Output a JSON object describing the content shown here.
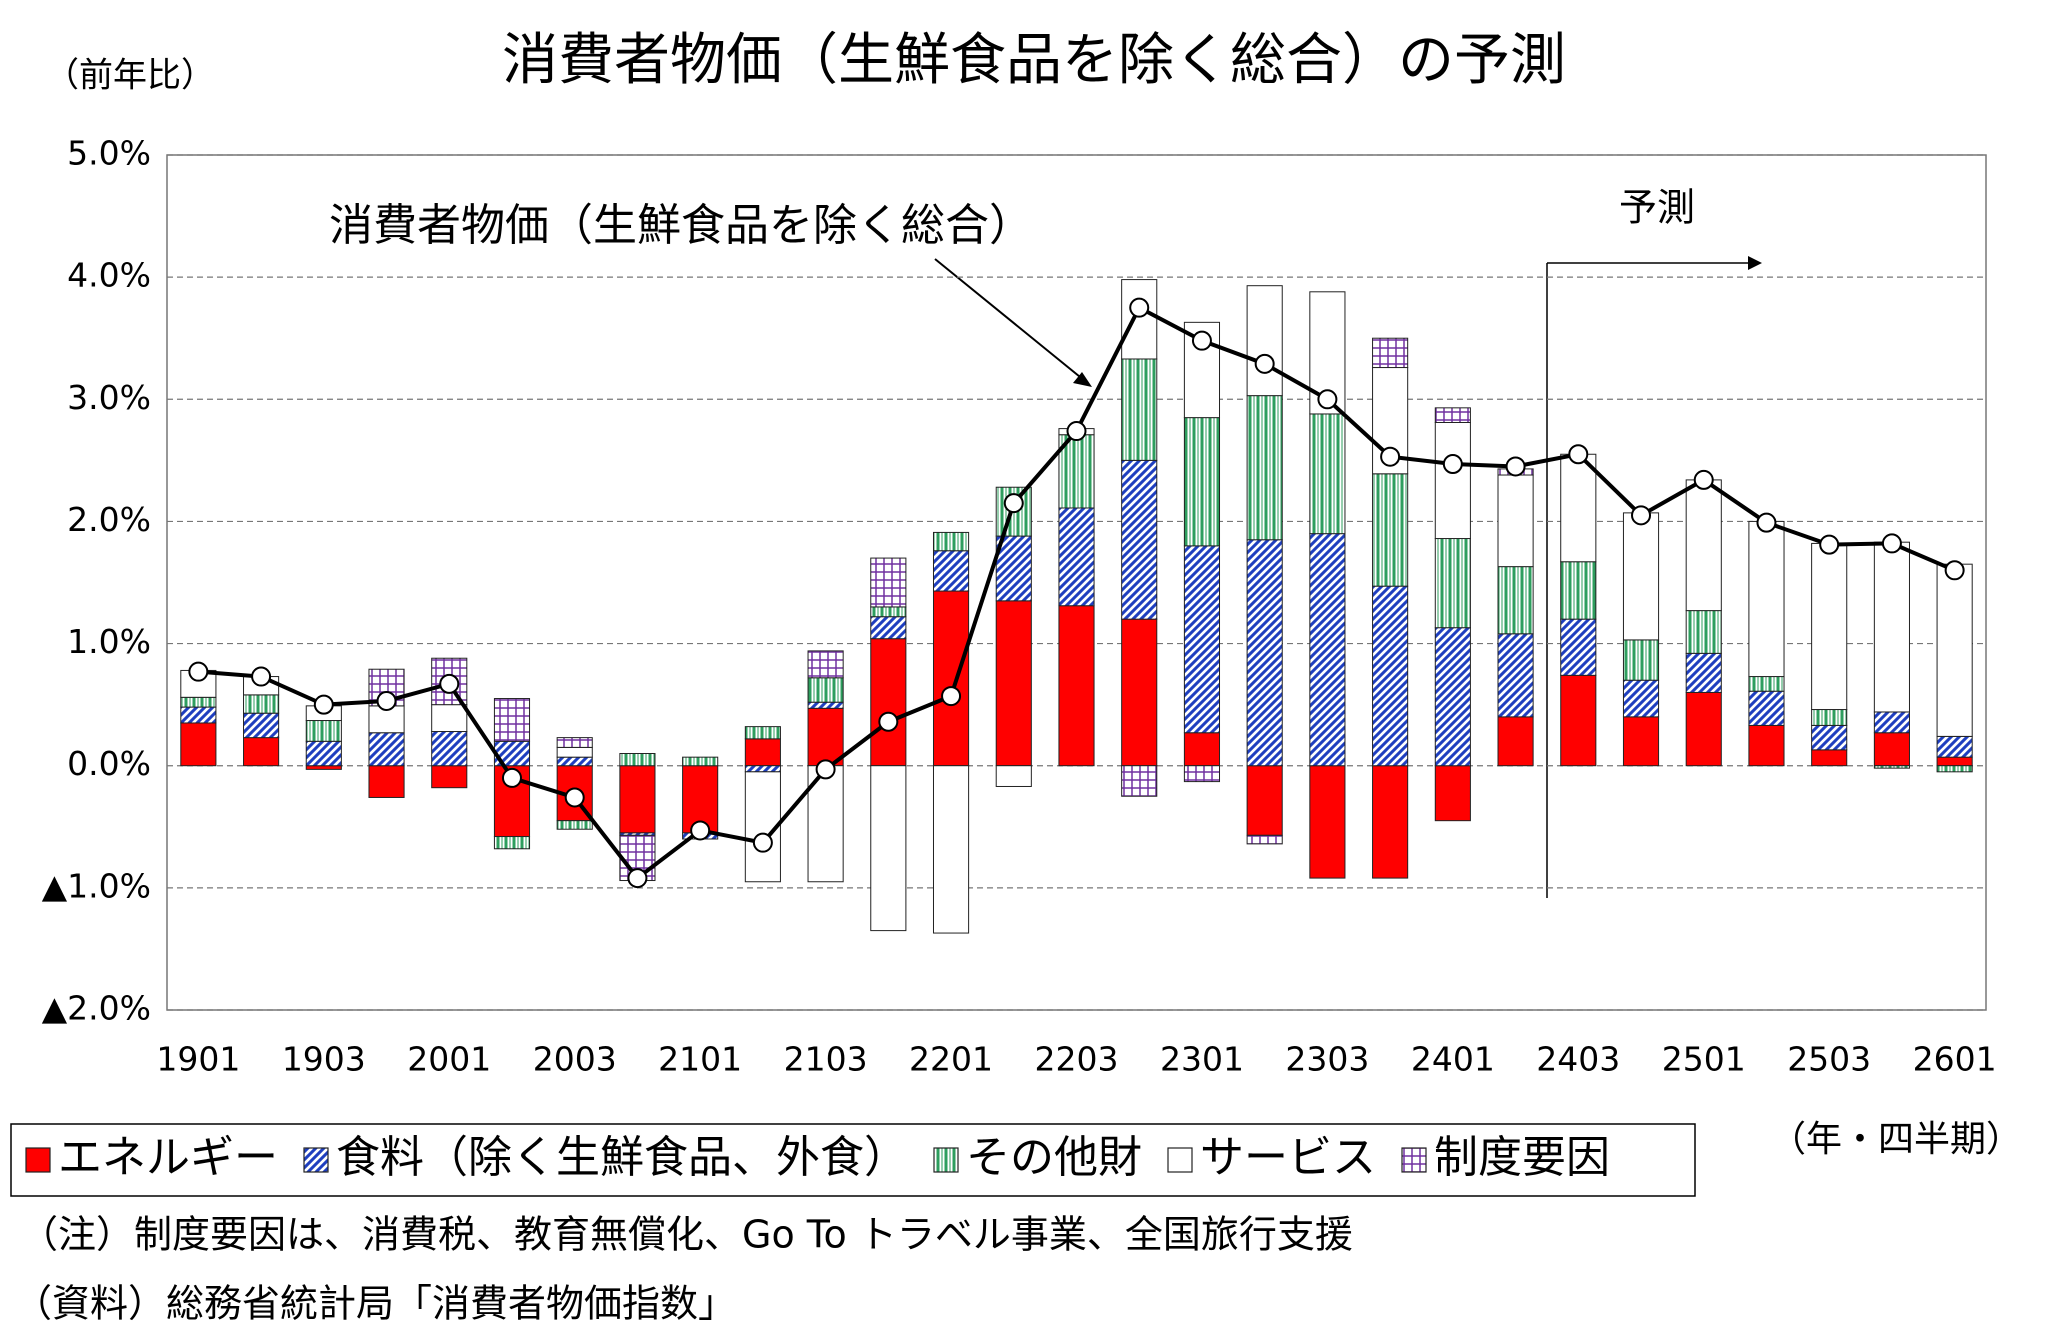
{
  "chart_data": {
    "type": "bar",
    "stacked": true,
    "title": "消費者物価（生鮮食品を除く総合）の予測",
    "y_label": "（前年比）",
    "x_label": "（年・四半期）",
    "categories": [
      "1901",
      null,
      "1903",
      null,
      "2001",
      null,
      "2003",
      null,
      "2101",
      null,
      "2103",
      null,
      "2201",
      null,
      "2203",
      null,
      "2301",
      null,
      "2303",
      null,
      "2401",
      null,
      "2403",
      null,
      "2501",
      null,
      "2503",
      null,
      "2601"
    ],
    "series": [
      {
        "name": "エネルギー",
        "color": "#ff0000",
        "pattern": "solid",
        "values": [
          0.35,
          0.23,
          -0.03,
          -0.26,
          -0.18,
          -0.58,
          -0.45,
          -0.55,
          -0.55,
          0.22,
          0.47,
          1.04,
          1.43,
          1.35,
          1.31,
          1.2,
          0.27,
          -0.57,
          -0.92,
          -0.92,
          -0.45,
          0.4,
          0.74,
          0.4,
          0.6,
          0.33,
          0.13,
          0.27,
          0.07
        ]
      },
      {
        "name": "食料（除く生鮮食品、外食）",
        "color": "#1f3fbf",
        "pattern": "diagonal",
        "values": [
          0.13,
          0.2,
          0.2,
          0.27,
          0.28,
          0.2,
          0.07,
          -0.02,
          -0.05,
          -0.05,
          0.05,
          0.18,
          0.33,
          0.53,
          0.8,
          1.3,
          1.53,
          1.85,
          1.9,
          1.47,
          1.13,
          0.68,
          0.46,
          0.3,
          0.32,
          0.28,
          0.2,
          0.17,
          0.17
        ]
      },
      {
        "name": "その他財",
        "color": "#2e9e5e",
        "pattern": "vertical",
        "values": [
          0.08,
          0.15,
          0.17,
          0,
          0,
          -0.1,
          -0.07,
          0.1,
          0.07,
          0.1,
          0.2,
          0.08,
          0.15,
          0.4,
          0.6,
          0.83,
          1.05,
          1.18,
          0.98,
          0.92,
          0.73,
          0.55,
          0.47,
          0.33,
          0.35,
          0.12,
          0.13,
          -0.02,
          -0.05
        ]
      },
      {
        "name": "サービス",
        "color": "#ffffff",
        "pattern": "solid",
        "values": [
          0.22,
          0.15,
          0.12,
          0.22,
          0.22,
          0,
          0.08,
          0,
          0,
          -0.9,
          -0.95,
          -1.35,
          -1.37,
          -0.17,
          0.05,
          0.65,
          0.78,
          0.9,
          1.0,
          0.87,
          0.95,
          0.75,
          0.88,
          1.04,
          1.07,
          1.27,
          1.36,
          1.39,
          1.41
        ]
      },
      {
        "name": "制度要因",
        "color": "#7030a0",
        "pattern": "grid",
        "values": [
          0,
          0,
          0,
          0.3,
          0.38,
          0.35,
          0.08,
          -0.37,
          0,
          0,
          0.22,
          0.4,
          0,
          0,
          0,
          -0.25,
          -0.13,
          -0.07,
          0,
          0.24,
          0.12,
          0.05,
          0,
          0,
          0,
          0,
          0,
          0,
          0
        ]
      }
    ],
    "line": {
      "name": "消費者物価（生鮮食品を除く総合）",
      "color": "#000000",
      "values": [
        0.77,
        0.73,
        0.5,
        0.53,
        0.67,
        -0.1,
        -0.26,
        -0.92,
        -0.53,
        -0.63,
        -0.03,
        0.36,
        0.57,
        2.15,
        2.74,
        3.75,
        3.48,
        3.29,
        3.0,
        2.53,
        2.47,
        2.45,
        2.55,
        2.05,
        2.34,
        1.99,
        1.81,
        1.82,
        1.6
      ]
    },
    "forecast_label": "予測",
    "ylim": [
      -2,
      5
    ],
    "yticks": [
      {
        "value": 5,
        "label": "5.0%"
      },
      {
        "value": 4,
        "label": "4.0%"
      },
      {
        "value": 3,
        "label": "3.0%"
      },
      {
        "value": 2,
        "label": "2.0%"
      },
      {
        "value": 1,
        "label": "1.0%"
      },
      {
        "value": 0,
        "label": "0.0%"
      },
      {
        "value": -1,
        "label": "▲1.0%"
      },
      {
        "value": -2,
        "label": "▲2.0%"
      }
    ],
    "grid": true,
    "legend": "bottom"
  },
  "notes": [
    "（注）制度要因は、消費税、教育無償化、Go To トラベル事業、全国旅行支援",
    "（資料）総務省統計局「消費者物価指数」"
  ]
}
